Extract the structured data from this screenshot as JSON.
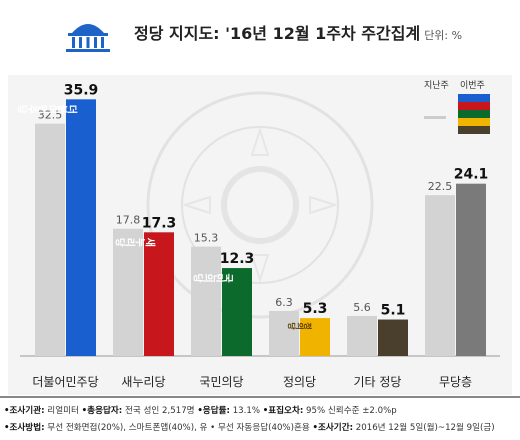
{
  "header": {
    "title": "정당 지지도: '16년 12월 1주차 주간집계",
    "unit": "단위: %"
  },
  "legend": {
    "prev_label": "지난주",
    "curr_label": "이번주"
  },
  "colors": {
    "prev_bar": "#d3d3d3",
    "minjoo": "#1a5fd0",
    "saenuri": "#c8161d",
    "people": "#0d6a2d",
    "justice": "#f0b400",
    "other": "#4a3f2c",
    "none": "#7a7a7a"
  },
  "chart_data": {
    "type": "bar",
    "title": "정당 지지도: '16년 12월 1주차 주간집계",
    "unit": "단위: %",
    "categories": [
      "더불어민주당",
      "새누리당",
      "국민의당",
      "정의당",
      "기타 정당",
      "무당층"
    ],
    "series": [
      {
        "name": "지난주",
        "values": [
          32.5,
          17.8,
          15.3,
          6.3,
          5.6,
          22.5
        ]
      },
      {
        "name": "이번주",
        "values": [
          35.9,
          17.3,
          12.3,
          5.3,
          5.1,
          24.1
        ]
      }
    ],
    "value_labels": {
      "prev": [
        "32.5",
        "17.8",
        "15.3",
        "6.3",
        "5.6",
        "22.5"
      ],
      "curr": [
        "35.9",
        "17.3",
        "12.3",
        "5.3",
        "5.1",
        "24.1"
      ]
    },
    "bar_labels": [
      "더불어민주당",
      "새누리당",
      "국민의당",
      "정의당",
      "",
      ""
    ],
    "ylim": [
      0,
      40
    ],
    "grid": false,
    "legend_position": "top-right"
  },
  "footer": {
    "line1": [
      {
        "label": "•조사기관:",
        "value": "리얼미터"
      },
      {
        "label": "•총응답자:",
        "value": "전국 성인 2,517명"
      },
      {
        "label": "•응답률:",
        "value": "13.1%"
      },
      {
        "label": "•표집오차:",
        "value": "95% 신뢰수준 ±2.0%p"
      }
    ],
    "line2": [
      {
        "label": "•조사방법:",
        "value": "무선 전화면접(20%), 스마트폰앱(40%), 유 • 무선 자동응답(40%)혼용"
      },
      {
        "label": "•조사기간:",
        "value": "2016년 12월 5일(월)~12월 9일(금)"
      }
    ]
  }
}
